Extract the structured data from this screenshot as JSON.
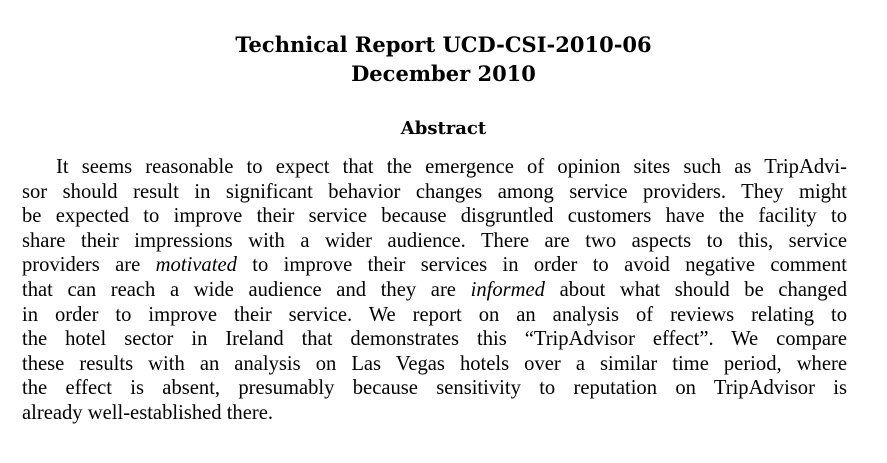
{
  "header": {
    "report_number": "Technical Report UCD-CSI-2010-06",
    "date": "December 2010"
  },
  "abstract": {
    "heading": "Abstract",
    "lines": [
      {
        "parts": [
          {
            "text": "It seems reasonable to expect that the emergence of opinion sites such as TripAdvi-",
            "italic": false
          }
        ]
      },
      {
        "parts": [
          {
            "text": "sor should result in significant behavior changes among service providers. They might",
            "italic": false
          }
        ]
      },
      {
        "parts": [
          {
            "text": "be expected to improve their service because disgruntled customers have the facility to",
            "italic": false
          }
        ]
      },
      {
        "parts": [
          {
            "text": "share their impressions with a wider audience. There are two aspects to this, service",
            "italic": false
          }
        ]
      },
      {
        "parts": [
          {
            "text": "providers are ",
            "italic": false
          },
          {
            "text": "motivated",
            "italic": true
          },
          {
            "text": " to improve their services in order to avoid negative comment",
            "italic": false
          }
        ]
      },
      {
        "parts": [
          {
            "text": "that can reach a wide audience and they are ",
            "italic": false
          },
          {
            "text": "informed",
            "italic": true
          },
          {
            "text": " about what should be changed",
            "italic": false
          }
        ]
      },
      {
        "parts": [
          {
            "text": "in order to improve their service.  We report on an analysis of reviews relating to",
            "italic": false
          }
        ]
      },
      {
        "parts": [
          {
            "text": "the hotel sector in Ireland that demonstrates this “TripAdvisor effect”. We compare",
            "italic": false
          }
        ]
      },
      {
        "parts": [
          {
            "text": "these results with an analysis on Las Vegas hotels over a similar time period, where",
            "italic": false
          }
        ]
      },
      {
        "parts": [
          {
            "text": "the effect is absent, presumably because sensitivity to reputation on TripAdvisor is",
            "italic": false
          }
        ]
      },
      {
        "parts": [
          {
            "text": "already well-established there.",
            "italic": false
          }
        ]
      }
    ]
  }
}
